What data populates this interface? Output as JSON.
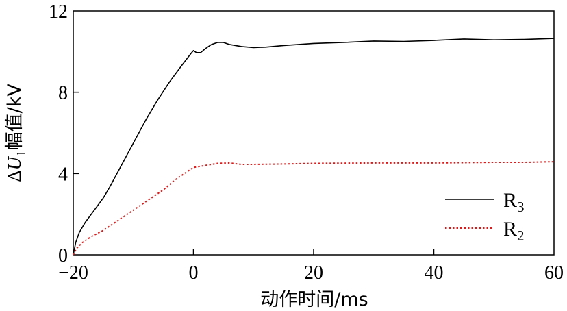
{
  "chart_data": {
    "type": "line",
    "xlabel": "动作时间/ms",
    "ylabel": "ΔU1幅值/kV",
    "ylabel_parts": {
      "delta": "Δ",
      "symbol": "U",
      "subscript": "1",
      "rest": "幅值/kV"
    },
    "xlim": [
      -20,
      60
    ],
    "ylim": [
      0,
      12
    ],
    "x_ticks": [
      -20,
      0,
      20,
      40,
      60
    ],
    "x_tick_labels": [
      "−20",
      "0",
      "20",
      "40",
      "60"
    ],
    "y_ticks": [
      0,
      4,
      8,
      12
    ],
    "y_tick_labels": [
      "0",
      "4",
      "8",
      "12"
    ],
    "grid": false,
    "legend_position": "bottom-right",
    "series": [
      {
        "name": "R3",
        "label_main": "R",
        "label_sub": "3",
        "color": "#000000",
        "style": "solid",
        "points": [
          [
            -20,
            0.0
          ],
          [
            -19.6,
            0.6
          ],
          [
            -19,
            1.1
          ],
          [
            -18,
            1.6
          ],
          [
            -17,
            2.0
          ],
          [
            -16,
            2.4
          ],
          [
            -15,
            2.8
          ],
          [
            -14,
            3.3
          ],
          [
            -12,
            4.4
          ],
          [
            -10,
            5.5
          ],
          [
            -8,
            6.6
          ],
          [
            -6,
            7.6
          ],
          [
            -4,
            8.5
          ],
          [
            -2,
            9.3
          ],
          [
            -0.3,
            9.95
          ],
          [
            0,
            10.05
          ],
          [
            0.5,
            9.95
          ],
          [
            1.2,
            9.95
          ],
          [
            2,
            10.15
          ],
          [
            3,
            10.35
          ],
          [
            4,
            10.45
          ],
          [
            5,
            10.45
          ],
          [
            6,
            10.35
          ],
          [
            8,
            10.25
          ],
          [
            10,
            10.2
          ],
          [
            12,
            10.22
          ],
          [
            15,
            10.3
          ],
          [
            20,
            10.4
          ],
          [
            25,
            10.45
          ],
          [
            30,
            10.52
          ],
          [
            35,
            10.5
          ],
          [
            40,
            10.55
          ],
          [
            45,
            10.62
          ],
          [
            50,
            10.58
          ],
          [
            55,
            10.6
          ],
          [
            60,
            10.65
          ]
        ]
      },
      {
        "name": "R2",
        "label_main": "R",
        "label_sub": "2",
        "color": "#e01818",
        "style": "dotted",
        "points": [
          [
            -20,
            0.0
          ],
          [
            -19.5,
            0.3
          ],
          [
            -18.5,
            0.6
          ],
          [
            -17,
            0.9
          ],
          [
            -15,
            1.2
          ],
          [
            -12,
            1.8
          ],
          [
            -10,
            2.2
          ],
          [
            -8,
            2.6
          ],
          [
            -5,
            3.2
          ],
          [
            -3,
            3.7
          ],
          [
            -1,
            4.1
          ],
          [
            0,
            4.3
          ],
          [
            2,
            4.4
          ],
          [
            4,
            4.5
          ],
          [
            6,
            4.52
          ],
          [
            8,
            4.45
          ],
          [
            10,
            4.45
          ],
          [
            15,
            4.47
          ],
          [
            20,
            4.5
          ],
          [
            30,
            4.52
          ],
          [
            40,
            4.52
          ],
          [
            50,
            4.55
          ],
          [
            55,
            4.55
          ],
          [
            60,
            4.58
          ]
        ]
      }
    ]
  }
}
